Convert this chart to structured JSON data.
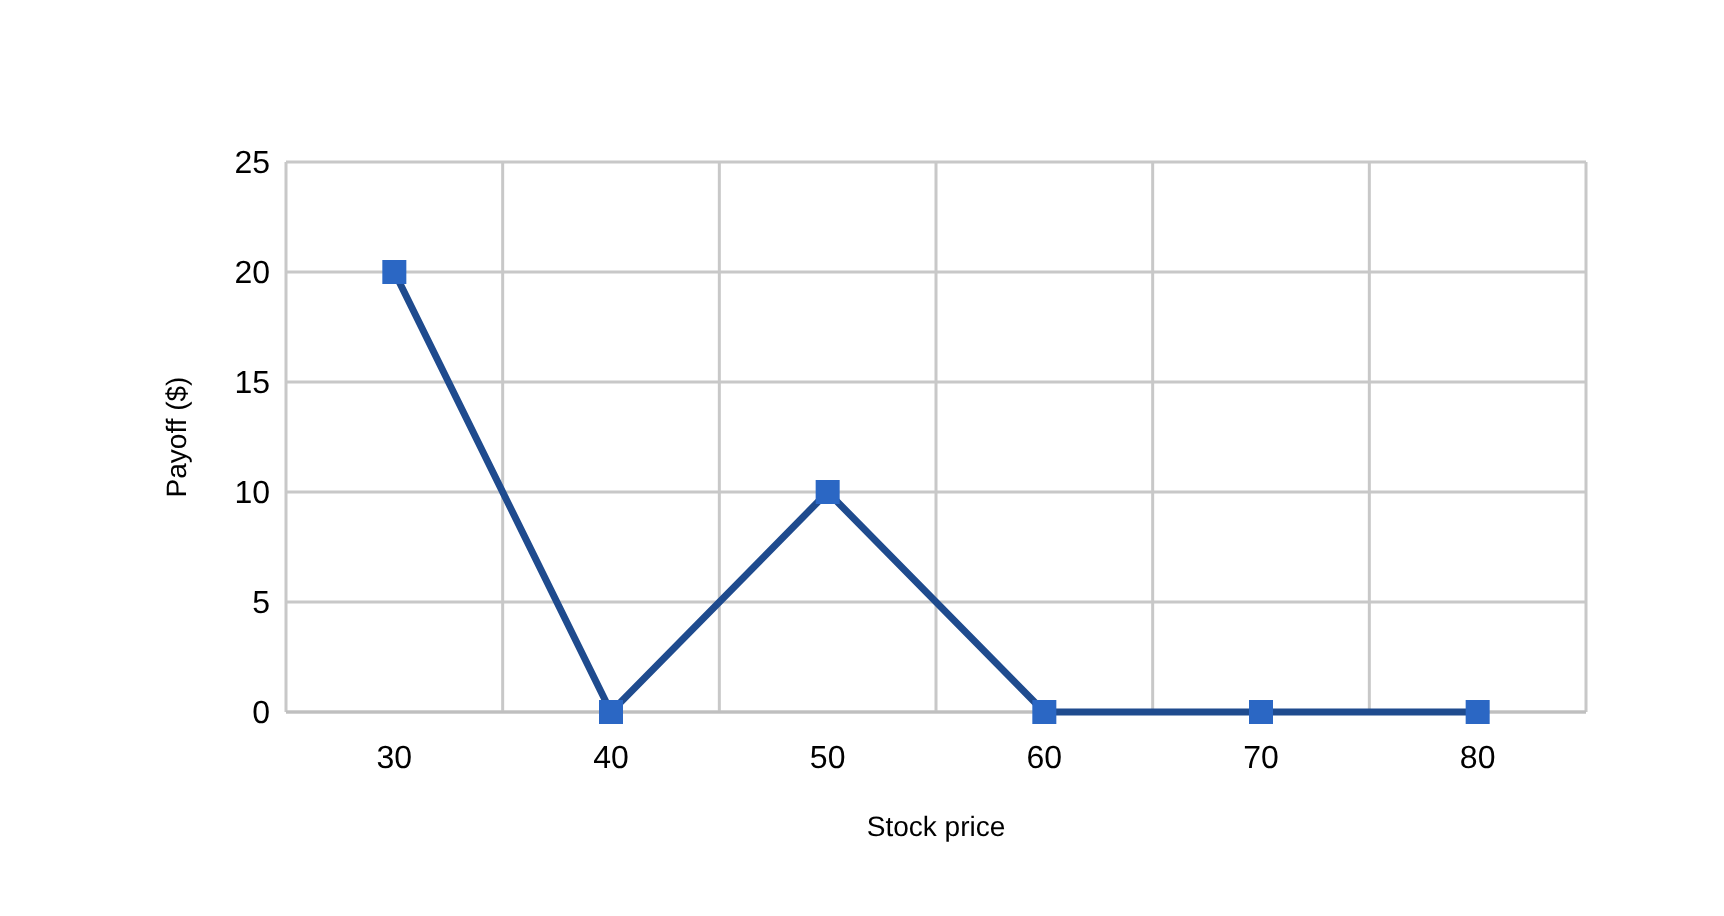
{
  "chart_data": {
    "type": "line",
    "xlabel": "Stock price",
    "ylabel": "Payoff ($)",
    "categories": [
      "30",
      "40",
      "50",
      "60",
      "70",
      "80"
    ],
    "series": [
      {
        "color": "#1f4b8e",
        "values": [
          20,
          0,
          10,
          0,
          0,
          0
        ]
      }
    ],
    "ylim": [
      0,
      25
    ],
    "yticks": [
      0,
      5,
      10,
      15,
      20,
      25
    ],
    "grid": true,
    "marker": "square",
    "line_style": "solid"
  }
}
